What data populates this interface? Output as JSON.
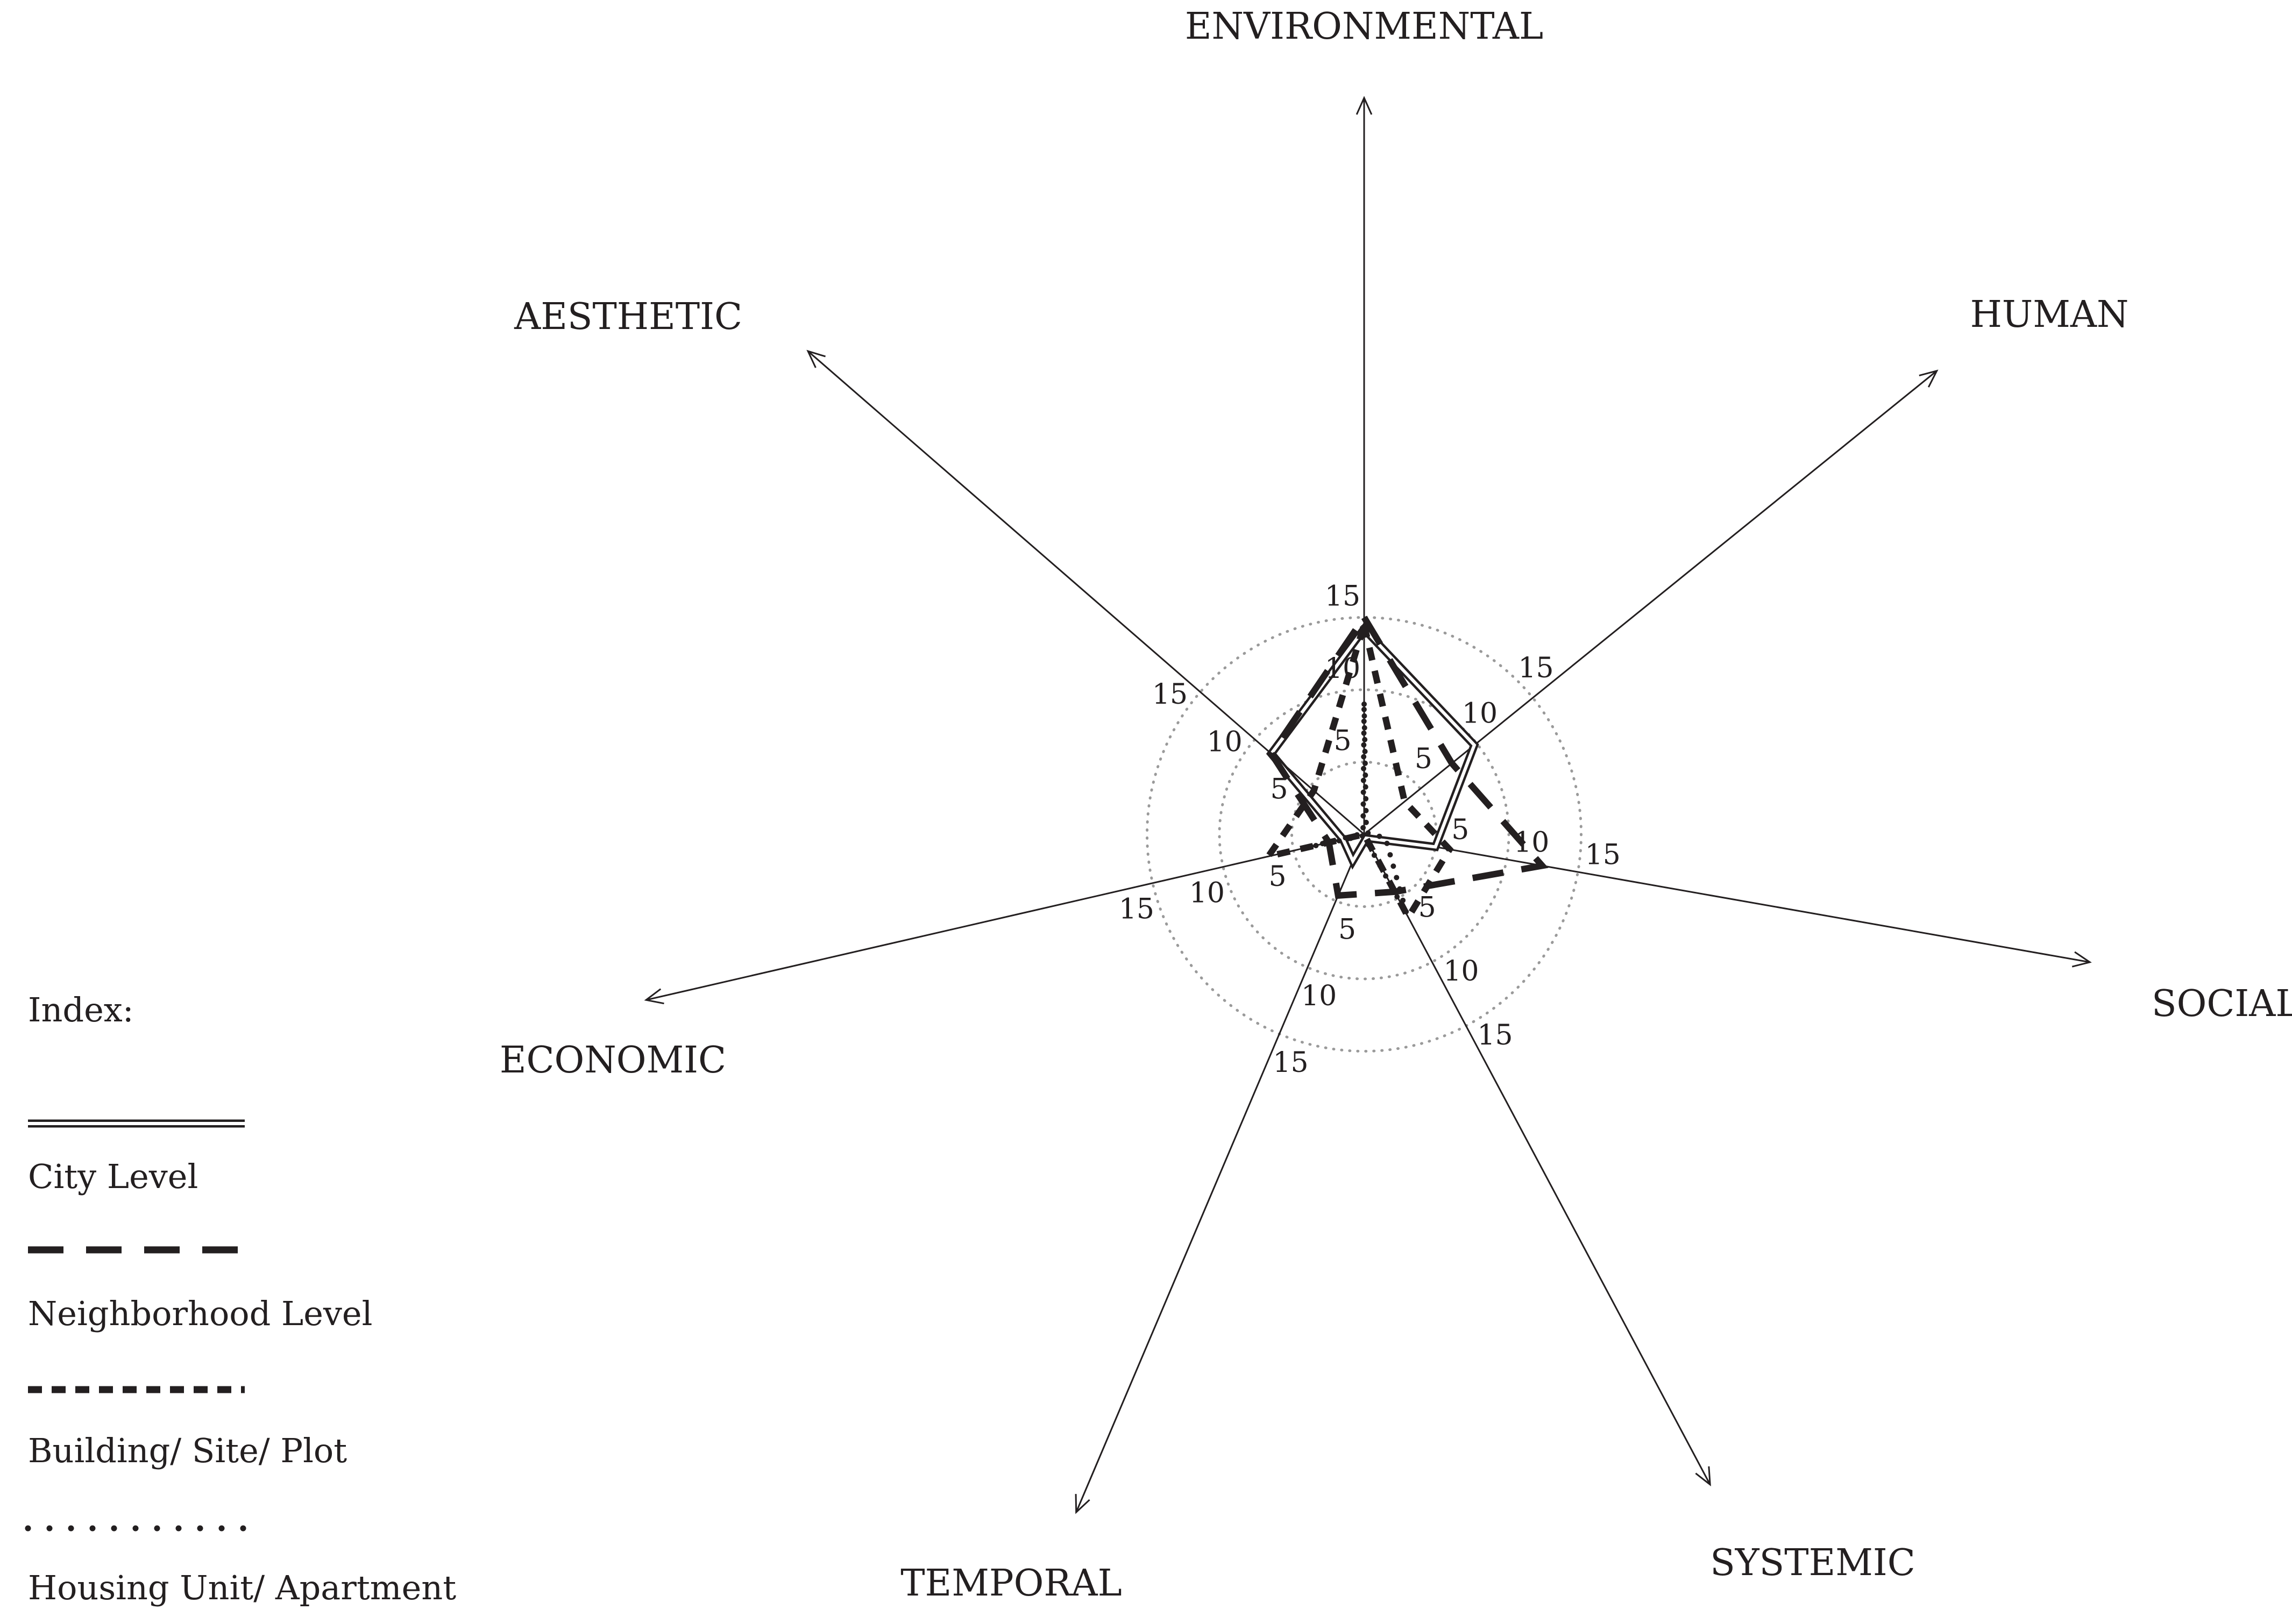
{
  "chart_data": {
    "type": "radar",
    "axes": [
      "ENVIRONMENTAL",
      "HUMAN",
      "SOCIAL",
      "SYSTEMIC",
      "TEMPORAL",
      "ECONOMIC",
      "AESTHETIC"
    ],
    "rings": [
      5,
      10,
      15
    ],
    "tick_labels": [
      "5",
      "10",
      "15"
    ],
    "rlim": [
      0,
      18
    ],
    "grid": true,
    "legend_title": "Index:",
    "series": [
      {
        "name": "City Level",
        "style": "double",
        "values": [
          14.2,
          9.8,
          5.0,
          0.3,
          2.0,
          1.5,
          8.5
        ]
      },
      {
        "name": "Neighborhood Level",
        "style": "long-dash",
        "values": [
          15.0,
          7.8,
          12.5,
          4.5,
          4.6,
          2.5,
          8.5
        ]
      },
      {
        "name": "Building/ Site/ Plot",
        "style": "short-dash",
        "values": [
          14.5,
          3.6,
          6.0,
          6.5,
          0.0,
          6.8,
          4.6
        ]
      },
      {
        "name": "Housing Unit/ Apartment",
        "style": "dotted",
        "values": [
          9.0,
          0.2,
          1.5,
          6.3,
          0.1,
          4.0,
          0.1
        ]
      }
    ],
    "colors": {
      "ink": "#231f20",
      "grid": "#9a9a9a"
    }
  }
}
